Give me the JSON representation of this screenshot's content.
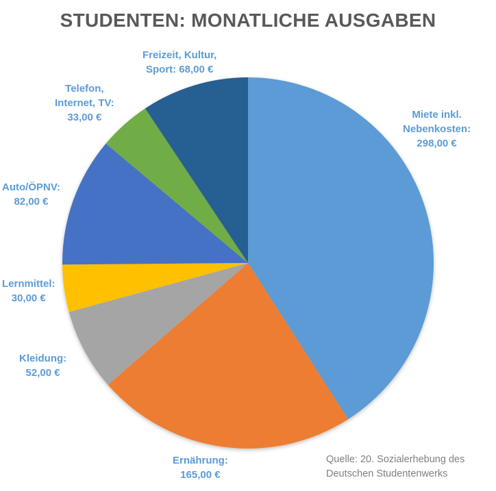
{
  "chart_data": {
    "type": "pie",
    "title": "STUDENTEN: MONATLICHE AUSGABEN",
    "categories": [
      "Miete inkl. Nebenkosten",
      "Ernährung",
      "Kleidung",
      "Lernmittel",
      "Auto/ÖPNV",
      "Telefon, Internet, TV",
      "Freizeit, Kultur, Sport"
    ],
    "values": [
      298,
      165,
      52,
      30,
      82,
      33,
      68
    ],
    "unit": "€",
    "colors": [
      "#5B9BD5",
      "#ED7D31",
      "#A5A5A5",
      "#FFC000",
      "#4472C4",
      "#70AD47",
      "#255E91"
    ],
    "start_angle": "12 o'clock, clockwise",
    "data_labels": [
      {
        "line1": "Miete inkl.",
        "line2": "Nebenkosten:",
        "line3": "298,00 €"
      },
      {
        "line1": "Ernährung:",
        "line2": "165,00 €"
      },
      {
        "line1": "Kleidung:",
        "line2": "52,00 €"
      },
      {
        "line1": "Lernmittel:",
        "line2": "30,00 €"
      },
      {
        "line1": "Auto/ÖPNV:",
        "line2": "82,00 €"
      },
      {
        "line1": "Telefon,",
        "line2": "Internet, TV:",
        "line3": "33,00 €"
      },
      {
        "line1": "Freizeit, Kultur,",
        "line2": "Sport: 68,00 €"
      }
    ],
    "legend": "none",
    "annotation": {
      "line1": "Quelle:  20. Sozialerhebung des",
      "line2": "Deutschen Studentenwerks"
    }
  }
}
